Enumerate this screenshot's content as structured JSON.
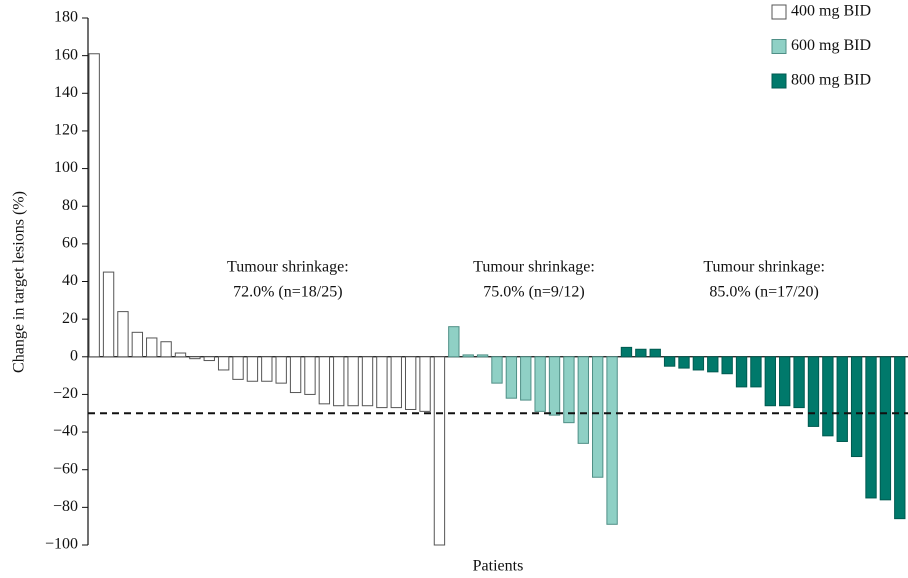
{
  "chart_data": {
    "type": "bar",
    "y_label": "Change in target lesions (%)",
    "x_label": "Patients",
    "ylim": [
      -100,
      180
    ],
    "yticks": [
      {
        "value": -100,
        "label": "−100"
      },
      {
        "value": -80,
        "label": "−80"
      },
      {
        "value": -60,
        "label": "−60"
      },
      {
        "value": -40,
        "label": "−40"
      },
      {
        "value": -20,
        "label": "−20"
      },
      0,
      20,
      40,
      60,
      80,
      100,
      120,
      140,
      160,
      180
    ],
    "reference_line": -30,
    "legend_position": "top-right",
    "series": [
      {
        "name": "400 mg BID",
        "color": "#ffffff",
        "stroke": "#555555",
        "values": [
          161,
          45,
          24,
          13,
          10,
          8,
          2,
          -1,
          -2,
          -7,
          -12,
          -13,
          -13,
          -14,
          -19,
          -20,
          -25,
          -26,
          -26,
          -26,
          -27,
          -27,
          -28,
          -29,
          -100
        ]
      },
      {
        "name": "600 mg BID",
        "color": "#8fd0c5",
        "stroke": "#4f8f86",
        "values": [
          16,
          1,
          1,
          -14,
          -22,
          -23,
          -29,
          -31,
          -35,
          -46,
          -64,
          -89
        ]
      },
      {
        "name": "800 mg BID",
        "color": "#00796b",
        "stroke": "#005a50",
        "values": [
          5,
          4,
          4,
          -5,
          -6,
          -7,
          -8,
          -9,
          -16,
          -16,
          -26,
          -26,
          -27,
          -37,
          -42,
          -45,
          -53,
          -75,
          -76,
          -86
        ]
      }
    ],
    "annotations": [
      {
        "line1": "Tumour shrinkage:",
        "line2": "72.0% (n=18/25)"
      },
      {
        "line1": "Tumour shrinkage:",
        "line2": "75.0% (n=9/12)"
      },
      {
        "line1": "Tumour shrinkage:",
        "line2": "85.0% (n=17/20)"
      }
    ]
  }
}
